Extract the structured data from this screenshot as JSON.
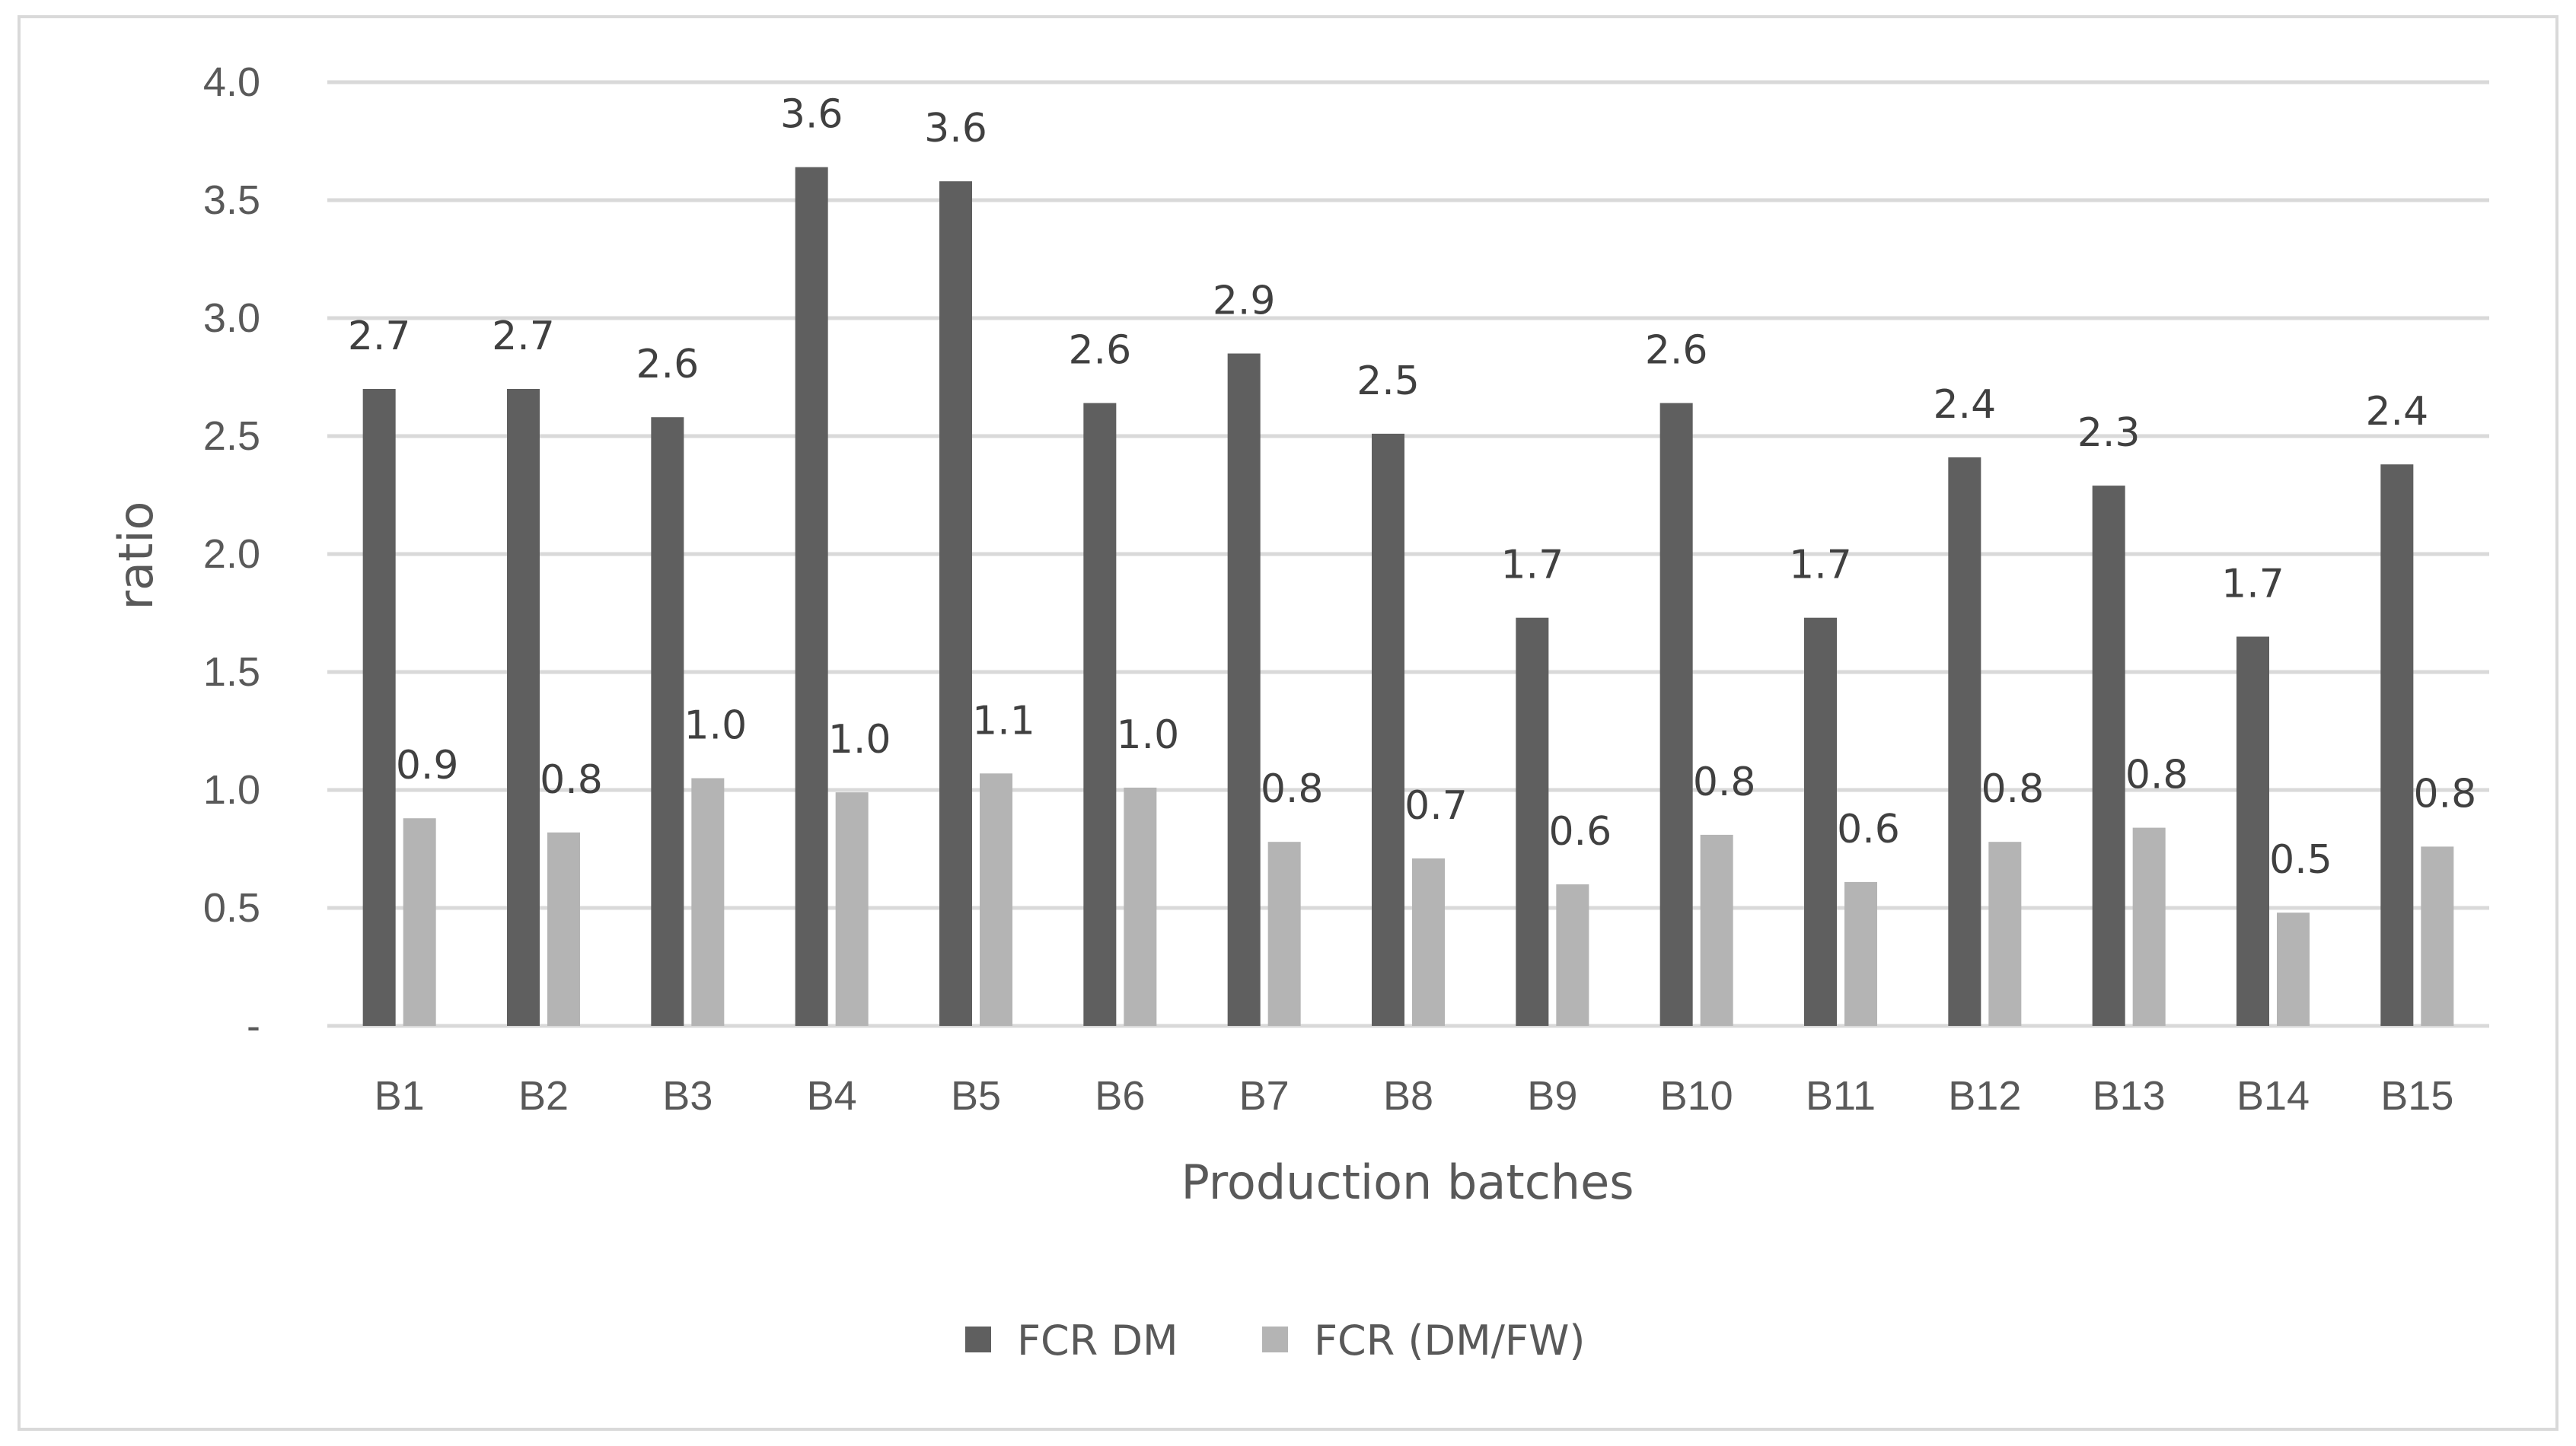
{
  "chart_data": {
    "type": "bar",
    "title": "",
    "xlabel": "Production batches",
    "ylabel": "ratio",
    "ylim": [
      0,
      4.0
    ],
    "yticks": [
      0,
      0.5,
      1.0,
      1.5,
      2.0,
      2.5,
      3.0,
      3.5,
      4.0
    ],
    "ytick_labels": [
      "-",
      "0.5",
      "1.0",
      "1.5",
      "2.0",
      "2.5",
      "3.0",
      "3.5",
      "4.0"
    ],
    "grid": true,
    "legend_position": "bottom",
    "categories": [
      "B1",
      "B2",
      "B3",
      "B4",
      "B5",
      "B6",
      "B7",
      "B8",
      "B9",
      "B10",
      "B11",
      "B12",
      "B13",
      "B14",
      "B15"
    ],
    "series": [
      {
        "name": "FCR DM",
        "color": "#5f5f5f",
        "values": [
          2.7,
          2.7,
          2.58,
          3.64,
          3.58,
          2.64,
          2.85,
          2.51,
          1.73,
          2.64,
          1.73,
          2.41,
          2.29,
          1.65,
          2.38
        ],
        "labels": [
          "2.7",
          "2.7",
          "2.6",
          "3.6",
          "3.6",
          "2.6",
          "2.9",
          "2.5",
          "1.7",
          "2.6",
          "1.7",
          "2.4",
          "2.3",
          "1.7",
          "2.4"
        ]
      },
      {
        "name": "FCR (DM/FW)",
        "color": "#b4b4b4",
        "values": [
          0.88,
          0.82,
          1.05,
          0.99,
          1.07,
          1.01,
          0.78,
          0.71,
          0.6,
          0.81,
          0.61,
          0.78,
          0.84,
          0.48,
          0.76
        ],
        "labels": [
          "0.9",
          "0.8",
          "1.0",
          "1.0",
          "1.1",
          "1.0",
          "0.8",
          "0.7",
          "0.6",
          "0.8",
          "0.6",
          "0.8",
          "0.8",
          "0.5",
          "0.8"
        ]
      }
    ]
  },
  "colors": {
    "grid": "#d9d9d9",
    "frame": "#d9d9d9"
  }
}
